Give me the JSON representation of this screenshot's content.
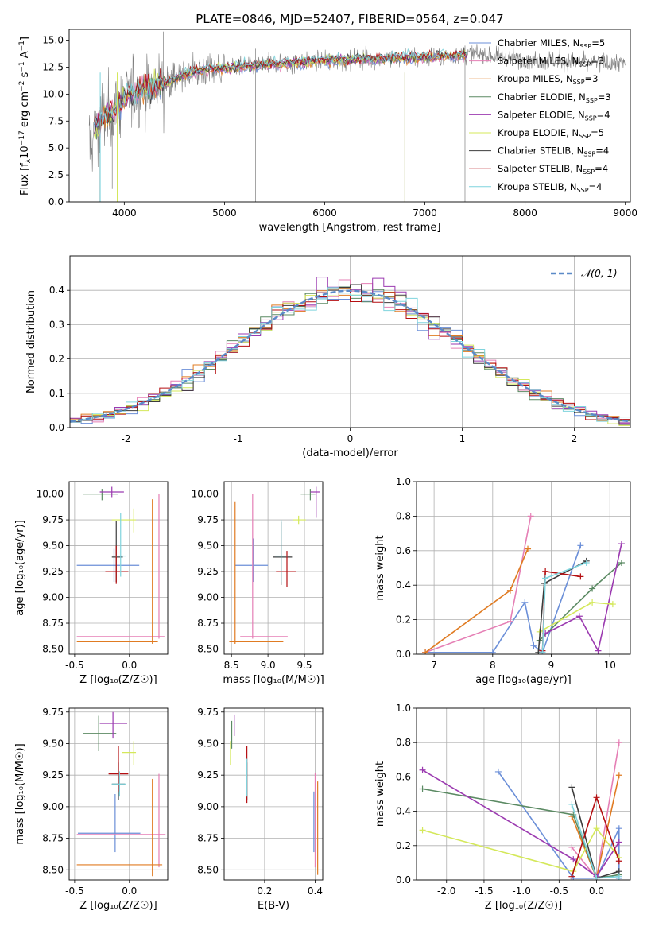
{
  "figure": {
    "title": "PLATE=0846, MJD=52407, FIBERID=0564, z=0.047"
  },
  "colors": {
    "Chabrier MILES": "#6b8fd8",
    "Salpeter MILES": "#e57fb5",
    "Kroupa MILES": "#e07b22",
    "Chabrier ELODIE": "#5b8a63",
    "Salpeter ELODIE": "#9b3ab0",
    "Kroupa ELODIE": "#d4e85a",
    "Chabrier STELIB": "#3c3c3c",
    "Salpeter STELIB": "#b50f12",
    "Kroupa STELIB": "#7fd4dd",
    "data": "#7f7f7f",
    "normal": "#4a7fbf"
  },
  "chart_data": [
    {
      "id": "spectrum",
      "type": "line",
      "title": "PLATE=0846, MJD=52407, FIBERID=0564, z=0.047",
      "xlabel": "wavelength [Angstrom, rest frame]",
      "ylabel_parts": {
        "a": "Flux [f",
        "b": "λ",
        "c": "10",
        "d": "−17",
        "e": " erg cm",
        "f": "−2",
        "g": " s",
        "h": "−1",
        "i": " A",
        "j": "−1",
        "k": "]"
      },
      "xlim": [
        3450,
        9050
      ],
      "ylim": [
        0,
        16
      ],
      "xticks": [
        4000,
        5000,
        6000,
        7000,
        8000,
        9000
      ],
      "yticks": [
        0.0,
        2.5,
        5.0,
        7.5,
        10.0,
        12.5,
        15.0
      ],
      "continuum": [
        [
          3650,
          5.0
        ],
        [
          3700,
          6.8
        ],
        [
          3800,
          7.8
        ],
        [
          3900,
          8.6
        ],
        [
          4000,
          9.6
        ],
        [
          4100,
          10.1
        ],
        [
          4200,
          10.6
        ],
        [
          4400,
          11.0
        ],
        [
          4600,
          11.8
        ],
        [
          4800,
          12.3
        ],
        [
          5000,
          12.4
        ],
        [
          5200,
          12.6
        ],
        [
          5500,
          12.8
        ],
        [
          5800,
          13.0
        ],
        [
          6000,
          13.1
        ],
        [
          6300,
          13.2
        ],
        [
          6600,
          13.3
        ],
        [
          7000,
          13.4
        ],
        [
          7300,
          13.6
        ],
        [
          7500,
          13.7
        ],
        [
          7800,
          13.4
        ],
        [
          8000,
          13.2
        ],
        [
          8300,
          13.1
        ],
        [
          8600,
          12.9
        ],
        [
          8900,
          12.9
        ],
        [
          9000,
          12.8
        ]
      ],
      "model_end": 7420,
      "legend": [
        {
          "name": "Chabrier MILES",
          "lib": "MILES",
          "n": "5"
        },
        {
          "name": "Salpeter MILES",
          "lib": "MILES",
          "n": "3"
        },
        {
          "name": "Kroupa MILES",
          "lib": "MILES",
          "n": "3"
        },
        {
          "name": "Chabrier ELODIE",
          "lib": "ELODIE",
          "n": "3"
        },
        {
          "name": "Salpeter ELODIE",
          "lib": "ELODIE",
          "n": "4"
        },
        {
          "name": "Kroupa ELODIE",
          "lib": "ELODIE",
          "n": "5"
        },
        {
          "name": "Chabrier STELIB",
          "lib": "STELIB",
          "n": "4"
        },
        {
          "name": "Salpeter STELIB",
          "lib": "STELIB",
          "n": "4"
        },
        {
          "name": "Kroupa STELIB",
          "lib": "STELIB",
          "n": "4"
        }
      ]
    },
    {
      "id": "residuals",
      "type": "histogram",
      "xlabel": "(data-model)/error",
      "ylabel": "Normed distribution",
      "xlim": [
        -2.5,
        2.5
      ],
      "ylim": [
        0,
        0.5
      ],
      "xticks": [
        -2,
        -1,
        0,
        1,
        2
      ],
      "yticks": [
        0.0,
        0.1,
        0.2,
        0.3,
        0.4
      ],
      "bin_width": 0.1,
      "legend": "𝒩(0, 1)"
    },
    {
      "id": "age-Z",
      "type": "errorbar",
      "xlabel": "Z [log₁₀(Z/Z☉)]",
      "ylabel": "age  [log₁₀(age/yr)]",
      "xlim": [
        -0.55,
        0.35
      ],
      "ylim": [
        8.45,
        10.12
      ],
      "xticks": [
        -0.5,
        0.0
      ],
      "yticks": [
        8.5,
        8.75,
        9.0,
        9.25,
        9.5,
        9.75,
        10.0
      ],
      "points": [
        {
          "model": "Chabrier MILES",
          "x": -0.14,
          "xe": [
            -0.48,
            0.09
          ],
          "y": 9.31,
          "ye": [
            9.15,
            9.47
          ]
        },
        {
          "model": "Salpeter MILES",
          "x": 0.27,
          "xe": [
            -0.48,
            0.32
          ],
          "y": 8.62,
          "ye": [
            8.6,
            10.0
          ]
        },
        {
          "model": "Kroupa MILES",
          "x": 0.21,
          "xe": [
            -0.48,
            0.26
          ],
          "y": 8.57,
          "ye": [
            8.55,
            9.95
          ]
        },
        {
          "model": "Chabrier ELODIE",
          "x": -0.25,
          "xe": [
            -0.42,
            -0.1
          ],
          "y": 10.0,
          "ye": [
            9.94,
            10.05
          ]
        },
        {
          "model": "Salpeter ELODIE",
          "x": -0.16,
          "xe": [
            -0.27,
            -0.05
          ],
          "y": 10.02,
          "ye": [
            9.97,
            10.07
          ]
        },
        {
          "model": "Kroupa ELODIE",
          "x": 0.04,
          "xe": [
            -0.16,
            0.06
          ],
          "y": 9.75,
          "ye": [
            9.63,
            9.86
          ]
        },
        {
          "model": "Chabrier STELIB",
          "x": -0.12,
          "xe": [
            -0.16,
            -0.06
          ],
          "y": 9.39,
          "ye": [
            9.15,
            9.74
          ]
        },
        {
          "model": "Salpeter STELIB",
          "x": -0.12,
          "xe": [
            -0.22,
            -0.01
          ],
          "y": 9.25,
          "ye": [
            9.13,
            9.5
          ]
        },
        {
          "model": "Kroupa STELIB",
          "x": -0.08,
          "xe": [
            -0.13,
            -0.03
          ],
          "y": 9.4,
          "ye": [
            9.2,
            9.82
          ]
        }
      ]
    },
    {
      "id": "age-mass",
      "type": "errorbar",
      "xlabel": "mass [log₁₀(M/M☉)]",
      "ylabel": "",
      "xlim": [
        8.4,
        9.75
      ],
      "ylim": [
        8.45,
        10.12
      ],
      "xticks": [
        8.5,
        9.0,
        9.5
      ],
      "yticks": [
        8.5,
        8.75,
        9.0,
        9.25,
        9.5,
        9.75,
        10.0
      ],
      "points": [
        {
          "model": "Chabrier MILES",
          "x": 8.8,
          "xe": [
            8.55,
            9.0
          ],
          "y": 9.31,
          "ye": [
            9.15,
            9.57
          ]
        },
        {
          "model": "Salpeter MILES",
          "x": 8.79,
          "xe": [
            8.62,
            9.27
          ],
          "y": 8.62,
          "ye": [
            8.6,
            10.0
          ]
        },
        {
          "model": "Kroupa MILES",
          "x": 8.55,
          "xe": [
            8.47,
            9.21
          ],
          "y": 8.57,
          "ye": [
            8.55,
            9.93
          ]
        },
        {
          "model": "Chabrier ELODIE",
          "x": 9.58,
          "xe": [
            9.45,
            9.65
          ],
          "y": 10.0,
          "ye": [
            9.94,
            10.05
          ]
        },
        {
          "model": "Salpeter ELODIE",
          "x": 9.66,
          "xe": [
            9.58,
            9.71
          ],
          "y": 10.02,
          "ye": [
            9.77,
            10.07
          ]
        },
        {
          "model": "Kroupa ELODIE",
          "x": 9.42,
          "xe": [
            9.34,
            9.52
          ],
          "y": 9.75,
          "ye": [
            9.71,
            9.79
          ]
        },
        {
          "model": "Chabrier STELIB",
          "x": 9.18,
          "xe": [
            9.07,
            9.33
          ],
          "y": 9.39,
          "ye": [
            9.12,
            9.73
          ]
        },
        {
          "model": "Salpeter STELIB",
          "x": 9.26,
          "xe": [
            9.11,
            9.38
          ],
          "y": 9.25,
          "ye": [
            9.1,
            9.45
          ]
        },
        {
          "model": "Kroupa STELIB",
          "x": 9.18,
          "xe": [
            9.1,
            9.27
          ],
          "y": 9.4,
          "ye": [
            9.15,
            9.75
          ]
        }
      ]
    },
    {
      "id": "mass-weight-age",
      "type": "line",
      "xlabel": "age  [log₁₀(age/yr)]",
      "ylabel": "mass weight",
      "xlim": [
        6.7,
        10.35
      ],
      "ylim": [
        0,
        1.0
      ],
      "xticks": [
        7,
        8,
        9,
        10
      ],
      "yticks": [
        0.0,
        0.2,
        0.4,
        0.6,
        0.8,
        1.0
      ],
      "series": [
        {
          "model": "Chabrier MILES",
          "x": [
            6.85,
            8.0,
            8.55,
            8.7,
            8.85,
            9.5
          ],
          "y": [
            0.01,
            0.01,
            0.3,
            0.05,
            0.01,
            0.63
          ]
        },
        {
          "model": "Salpeter MILES",
          "x": [
            6.85,
            8.3,
            8.65
          ],
          "y": [
            0.01,
            0.19,
            0.8
          ]
        },
        {
          "model": "Kroupa MILES",
          "x": [
            6.85,
            8.3,
            8.6
          ],
          "y": [
            0.01,
            0.37,
            0.61
          ]
        },
        {
          "model": "Chabrier ELODIE",
          "x": [
            8.8,
            9.7,
            10.2
          ],
          "y": [
            0.08,
            0.38,
            0.53
          ]
        },
        {
          "model": "Salpeter ELODIE",
          "x": [
            8.9,
            9.48,
            9.8,
            10.2
          ],
          "y": [
            0.12,
            0.22,
            0.02,
            0.64
          ]
        },
        {
          "model": "Kroupa ELODIE",
          "x": [
            8.8,
            9.7,
            10.05
          ],
          "y": [
            0.13,
            0.3,
            0.29
          ]
        },
        {
          "model": "Chabrier STELIB",
          "x": [
            8.78,
            8.88,
            9.6
          ],
          "y": [
            0.01,
            0.41,
            0.54
          ]
        },
        {
          "model": "Salpeter STELIB",
          "x": [
            8.85,
            8.9,
            9.5
          ],
          "y": [
            0.02,
            0.48,
            0.45
          ]
        },
        {
          "model": "Kroupa STELIB",
          "x": [
            8.85,
            8.9,
            9.6
          ],
          "y": [
            0.01,
            0.44,
            0.53
          ]
        }
      ]
    },
    {
      "id": "mass-Z",
      "type": "errorbar",
      "xlabel": "Z [log₁₀(Z/Z☉)]",
      "ylabel": "mass [log₁₀(M/M☉)]",
      "xlim": [
        -0.55,
        0.35
      ],
      "ylim": [
        8.42,
        9.78
      ],
      "xticks": [
        -0.5,
        0.0
      ],
      "yticks": [
        8.5,
        8.75,
        9.0,
        9.25,
        9.5,
        9.75
      ],
      "points": [
        {
          "model": "Chabrier MILES",
          "x": -0.13,
          "xe": [
            -0.47,
            0.1
          ],
          "y": 8.79,
          "ye": [
            8.64,
            9.1
          ]
        },
        {
          "model": "Salpeter MILES",
          "x": 0.27,
          "xe": [
            -0.48,
            0.33
          ],
          "y": 8.78,
          "ye": [
            8.52,
            9.26
          ]
        },
        {
          "model": "Kroupa MILES",
          "x": 0.21,
          "xe": [
            -0.48,
            0.3
          ],
          "y": 8.54,
          "ye": [
            8.45,
            9.22
          ]
        },
        {
          "model": "Chabrier ELODIE",
          "x": -0.28,
          "xe": [
            -0.42,
            -0.12
          ],
          "y": 9.58,
          "ye": [
            9.44,
            9.72
          ]
        },
        {
          "model": "Salpeter ELODIE",
          "x": -0.15,
          "xe": [
            -0.27,
            -0.02
          ],
          "y": 9.66,
          "ye": [
            9.54,
            9.75
          ]
        },
        {
          "model": "Kroupa ELODIE",
          "x": 0.04,
          "xe": [
            -0.07,
            0.06
          ],
          "y": 9.43,
          "ye": [
            9.33,
            9.52
          ]
        },
        {
          "model": "Chabrier STELIB",
          "x": -0.1,
          "xe": [
            -0.16,
            -0.04
          ],
          "y": 9.18,
          "ye": [
            9.05,
            9.35
          ]
        },
        {
          "model": "Salpeter STELIB",
          "x": -0.1,
          "xe": [
            -0.19,
            -0.01
          ],
          "y": 9.26,
          "ye": [
            9.12,
            9.48
          ]
        },
        {
          "model": "Kroupa STELIB",
          "x": -0.09,
          "xe": [
            -0.16,
            -0.03
          ],
          "y": 9.18,
          "ye": [
            9.08,
            9.28
          ]
        }
      ]
    },
    {
      "id": "mass-EBV",
      "type": "errorbar",
      "xlabel": "E(B-V)",
      "ylabel": "",
      "xlim": [
        0.04,
        0.43
      ],
      "ylim": [
        8.42,
        9.78
      ],
      "xticks": [
        0.2,
        0.4
      ],
      "yticks": [
        8.5,
        8.75,
        9.0,
        9.25,
        9.5,
        9.75
      ],
      "points": [
        {
          "model": "Chabrier MILES",
          "x": 0.395,
          "xe": [
            0.395,
            0.395
          ],
          "y": 8.79,
          "ye": [
            8.64,
            9.12
          ]
        },
        {
          "model": "Salpeter MILES",
          "x": 0.4,
          "xe": [
            0.4,
            0.4
          ],
          "y": 8.78,
          "ye": [
            8.52,
            9.27
          ]
        },
        {
          "model": "Kroupa MILES",
          "x": 0.41,
          "xe": [
            0.41,
            0.41
          ],
          "y": 8.54,
          "ye": [
            8.46,
            9.2
          ]
        },
        {
          "model": "Chabrier ELODIE",
          "x": 0.07,
          "xe": [
            0.07,
            0.07
          ],
          "y": 9.58,
          "ye": [
            9.46,
            9.68
          ]
        },
        {
          "model": "Salpeter ELODIE",
          "x": 0.08,
          "xe": [
            0.08,
            0.08
          ],
          "y": 9.66,
          "ye": [
            9.56,
            9.73
          ]
        },
        {
          "model": "Kroupa ELODIE",
          "x": 0.065,
          "xe": [
            0.065,
            0.065
          ],
          "y": 9.43,
          "ye": [
            9.33,
            9.52
          ]
        },
        {
          "model": "Chabrier STELIB",
          "x": 0.13,
          "xe": [
            0.13,
            0.13
          ],
          "y": 9.18,
          "ye": [
            9.05,
            9.35
          ]
        },
        {
          "model": "Salpeter STELIB",
          "x": 0.13,
          "xe": [
            0.13,
            0.13
          ],
          "y": 9.26,
          "ye": [
            9.03,
            9.48
          ]
        },
        {
          "model": "Kroupa STELIB",
          "x": 0.13,
          "xe": [
            0.13,
            0.13
          ],
          "y": 9.18,
          "ye": [
            9.08,
            9.38
          ]
        }
      ]
    },
    {
      "id": "mass-weight-Z",
      "type": "line",
      "xlabel": "Z [log₁₀(Z/Z☉)]",
      "ylabel": "mass weight",
      "xlim": [
        -2.4,
        0.45
      ],
      "ylim": [
        0,
        1.0
      ],
      "xticks": [
        -2.0,
        -1.5,
        -1.0,
        -0.5,
        0.0
      ],
      "yticks": [
        0.0,
        0.2,
        0.4,
        0.6,
        0.8,
        1.0
      ],
      "series": [
        {
          "model": "Chabrier MILES",
          "x": [
            -1.31,
            -0.31,
            0.0,
            0.3,
            0.3
          ],
          "y": [
            0.63,
            0.01,
            0.01,
            0.3,
            0.01
          ]
        },
        {
          "model": "Salpeter MILES",
          "x": [
            -0.33,
            0.0,
            0.3
          ],
          "y": [
            0.19,
            0.01,
            0.8
          ]
        },
        {
          "model": "Kroupa MILES",
          "x": [
            -0.33,
            0.0,
            0.3
          ],
          "y": [
            0.37,
            0.01,
            0.61
          ]
        },
        {
          "model": "Chabrier ELODIE",
          "x": [
            -2.32,
            -0.31,
            0.0,
            0.3
          ],
          "y": [
            0.53,
            0.38,
            0.01,
            0.03
          ]
        },
        {
          "model": "Salpeter ELODIE",
          "x": [
            -2.32,
            -0.31,
            0.0,
            0.3
          ],
          "y": [
            0.64,
            0.12,
            0.02,
            0.22
          ]
        },
        {
          "model": "Kroupa ELODIE",
          "x": [
            -2.32,
            -0.31,
            0.0,
            0.3
          ],
          "y": [
            0.29,
            0.05,
            0.3,
            0.13
          ]
        },
        {
          "model": "Chabrier STELIB",
          "x": [
            -0.33,
            0.0,
            0.3
          ],
          "y": [
            0.54,
            0.01,
            0.05
          ]
        },
        {
          "model": "Salpeter STELIB",
          "x": [
            -0.33,
            0.0,
            0.3
          ],
          "y": [
            0.02,
            0.48,
            0.11
          ]
        },
        {
          "model": "Kroupa STELIB",
          "x": [
            -0.33,
            0.0,
            0.3
          ],
          "y": [
            0.44,
            0.01,
            0.02
          ]
        }
      ]
    }
  ]
}
